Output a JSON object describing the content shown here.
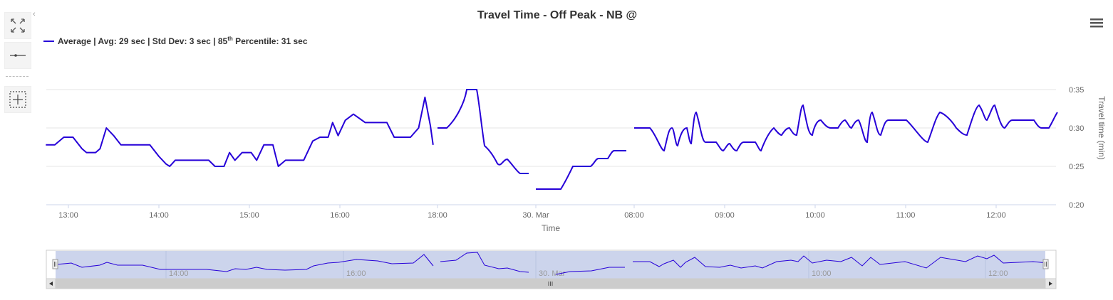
{
  "toolbar": {
    "collapse_glyph": "‹",
    "tools": [
      {
        "name": "fullscreen-icon"
      },
      {
        "name": "line-tool-icon"
      },
      {
        "name": "selection-tool-icon"
      }
    ]
  },
  "menu": {
    "icon": "hamburger-menu-icon"
  },
  "colors": {
    "series": "#2600d8",
    "grid": "#e6e6e6",
    "navigator_fill": "#ccd4ec",
    "scrollbar": "#cccccc"
  },
  "chart_data": {
    "type": "line",
    "title": "Travel Time - Off Peak - NB @",
    "legend": {
      "position": "top-left",
      "series_name": "Average",
      "stats_text": " | Avg: 29 sec | Std Dev: 3 sec | 85",
      "superscript": "th",
      "tail": " Percentile: 31 sec"
    },
    "xlabel": "Time",
    "ylabel": "Travel time (min)",
    "y_axis_position": "right",
    "ylim": [
      0.2,
      0.35
    ],
    "yticks": [
      "0:35",
      "0:30",
      "0:25",
      "0:20"
    ],
    "yticks_values": [
      0.35,
      0.3,
      0.25,
      0.2
    ],
    "xticks": [
      "13:00",
      "14:00",
      "15:00",
      "16:00",
      "18:00",
      "30. Mar",
      "08:00",
      "09:00",
      "10:00",
      "11:00",
      "12:00"
    ],
    "grid": true,
    "navigator_ticks": [
      "14:00",
      "16:00",
      "30. Mar",
      "10:00",
      "12:00"
    ],
    "series": [
      {
        "name": "Average",
        "segments": [
          [
            [
              12.75,
              0.278
            ],
            [
              12.85,
              0.278
            ],
            [
              12.95,
              0.288
            ],
            [
              13.05,
              0.288
            ],
            [
              13.15,
              0.273
            ],
            [
              13.2,
              0.268
            ],
            [
              13.3,
              0.268
            ],
            [
              13.35,
              0.273
            ],
            [
              13.42,
              0.3
            ],
            [
              13.5,
              0.29
            ],
            [
              13.58,
              0.278
            ],
            [
              13.9,
              0.278
            ],
            [
              14.0,
              0.263
            ],
            [
              14.08,
              0.253
            ],
            [
              14.12,
              0.25
            ],
            [
              14.18,
              0.258
            ],
            [
              14.55,
              0.258
            ],
            [
              14.62,
              0.25
            ],
            [
              14.72,
              0.25
            ],
            [
              14.78,
              0.268
            ],
            [
              14.84,
              0.258
            ],
            [
              14.92,
              0.268
            ],
            [
              15.02,
              0.268
            ],
            [
              15.08,
              0.258
            ],
            [
              15.16,
              0.278
            ],
            [
              15.26,
              0.278
            ],
            [
              15.32,
              0.25
            ],
            [
              15.4,
              0.258
            ],
            [
              15.6,
              0.258
            ],
            [
              15.7,
              0.283
            ],
            [
              15.78,
              0.288
            ],
            [
              15.87,
              0.288
            ],
            [
              15.92,
              0.307
            ],
            [
              15.98,
              0.29
            ],
            [
              16.06,
              0.31
            ],
            [
              16.15,
              0.318
            ],
            [
              16.28,
              0.307
            ],
            [
              16.52,
              0.307
            ],
            [
              16.6,
              0.288
            ],
            [
              16.78,
              0.288
            ],
            [
              16.87,
              0.3
            ],
            [
              16.94,
              0.34
            ],
            [
              17.0,
              0.303
            ],
            [
              17.03,
              0.278
            ]
          ]
        ]
      }
    ]
  }
}
